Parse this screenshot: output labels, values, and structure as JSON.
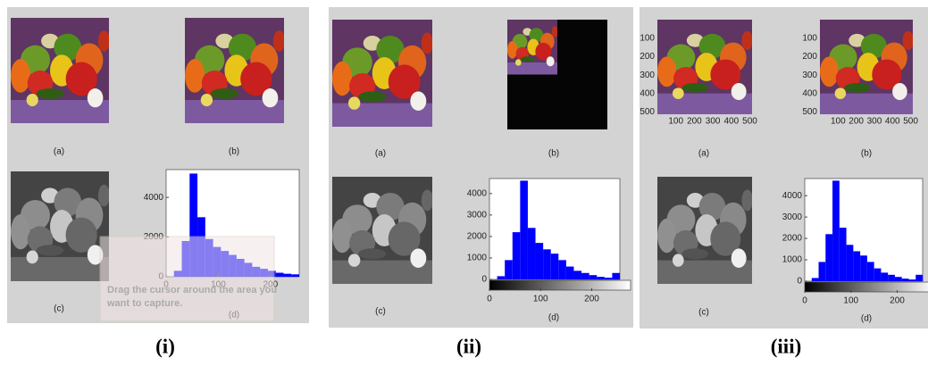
{
  "panels": [
    {
      "caption": "(i)",
      "labels": [
        "(a)",
        "(b)",
        "(c)",
        "(d)"
      ],
      "overlay_text": [
        "Drag the cursor around the area you",
        "want to capture."
      ],
      "histogram": {
        "type": "histogram",
        "color": "#0000ff",
        "bins": [
          0,
          15,
          30,
          45,
          60,
          75,
          90,
          105,
          120,
          135,
          150,
          165,
          180,
          195,
          210,
          225,
          240,
          255
        ],
        "counts": [
          0,
          300,
          1800,
          5200,
          3000,
          1900,
          1500,
          1300,
          1100,
          900,
          700,
          500,
          400,
          300,
          200,
          150,
          120
        ],
        "xlim": [
          0,
          255
        ],
        "ylim": [
          0,
          5400
        ],
        "xticks": [
          0,
          100,
          200
        ],
        "yticks": [
          0,
          2000,
          4000
        ]
      }
    },
    {
      "caption": "(ii)",
      "labels": [
        "(a)",
        "(b)",
        "(c)",
        "(d)"
      ],
      "histogram": {
        "type": "histogram",
        "color": "#0000ff",
        "bins": [
          0,
          15,
          30,
          45,
          60,
          75,
          90,
          105,
          120,
          135,
          150,
          165,
          180,
          195,
          210,
          225,
          240,
          255
        ],
        "counts": [
          0,
          150,
          900,
          2200,
          4600,
          2400,
          1700,
          1400,
          1200,
          900,
          600,
          400,
          300,
          200,
          120,
          80,
          300
        ],
        "xlim": [
          0,
          255
        ],
        "ylim": [
          0,
          4700
        ],
        "xticks": [
          0,
          100,
          200
        ],
        "yticks": [
          0,
          1000,
          2000,
          3000,
          4000
        ]
      }
    },
    {
      "caption": "(iii)",
      "labels": [
        "(a)",
        "(b)",
        "(c)",
        "(d)"
      ],
      "image_ticks": [
        100,
        200,
        300,
        400,
        500
      ],
      "image_lim": [
        0,
        512
      ],
      "histogram": {
        "type": "histogram",
        "color": "#0000ff",
        "bins": [
          0,
          15,
          30,
          45,
          60,
          75,
          90,
          105,
          120,
          135,
          150,
          165,
          180,
          195,
          210,
          225,
          240,
          255
        ],
        "counts": [
          0,
          150,
          900,
          2200,
          4700,
          2500,
          1700,
          1400,
          1200,
          900,
          600,
          400,
          300,
          200,
          120,
          80,
          300
        ],
        "xlim": [
          0,
          255
        ],
        "ylim": [
          0,
          4800
        ],
        "xticks": [
          0,
          100,
          200
        ],
        "yticks": [
          0,
          1000,
          2000,
          3000,
          4000
        ]
      }
    }
  ]
}
